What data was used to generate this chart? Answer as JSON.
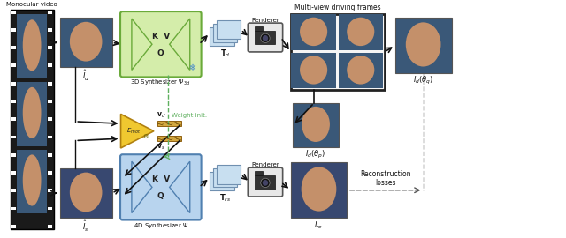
{
  "bg_color": "#ffffff",
  "film_strip_color": "#1a1a1a",
  "synthesizer_3d_color": "#d4edaa",
  "synthesizer_3d_border": "#6aaa3a",
  "synthesizer_4d_color": "#b8d4ee",
  "synthesizer_4d_border": "#5080b0",
  "triplane_color": "#c8dff0",
  "triplane_border": "#7090b0",
  "encoder_color": "#f0c830",
  "encoder_border": "#b08010",
  "arrow_color": "#111111",
  "dashed_arrow_color": "#555555",
  "green_dashed_color": "#60b060",
  "text_color": "#111111",
  "renderer_color": "#e8e8e8",
  "renderer_border": "#555555",
  "multiview_border": "#222222",
  "face_skin": "#c4906a",
  "face_bg_top": "#3a5878",
  "face_bg_bot": "#384870",
  "label_mono": "Monocular video",
  "label_3d_syn": "3D Synthesizer $\\Psi_{3d}$",
  "label_4d_syn": "4D Synthesizer $\\Psi$",
  "label_weight_init": "Weight init.",
  "label_renderer": "Renderer",
  "label_Td": "$\\mathbf{T}_d$",
  "label_Trs": "$\\mathbf{T}_{rs}$",
  "label_Id_hat": "$\\hat{I}_d$",
  "label_Is_hat": "$\\hat{I}_s$",
  "label_Id_theta_q": "$I_d(\\theta_q)$",
  "label_Id_theta_p": "$I_d(\\theta_p)$",
  "label_Ire": "$I_{re}$",
  "label_Emot": "$E_{mot}$",
  "label_vd": "$\\mathbf{v}_d$",
  "label_vs": "$\\mathbf{v}_s$",
  "label_recon": "Reconstruction\nlosses",
  "label_multiview": "Multi-view driving frames"
}
